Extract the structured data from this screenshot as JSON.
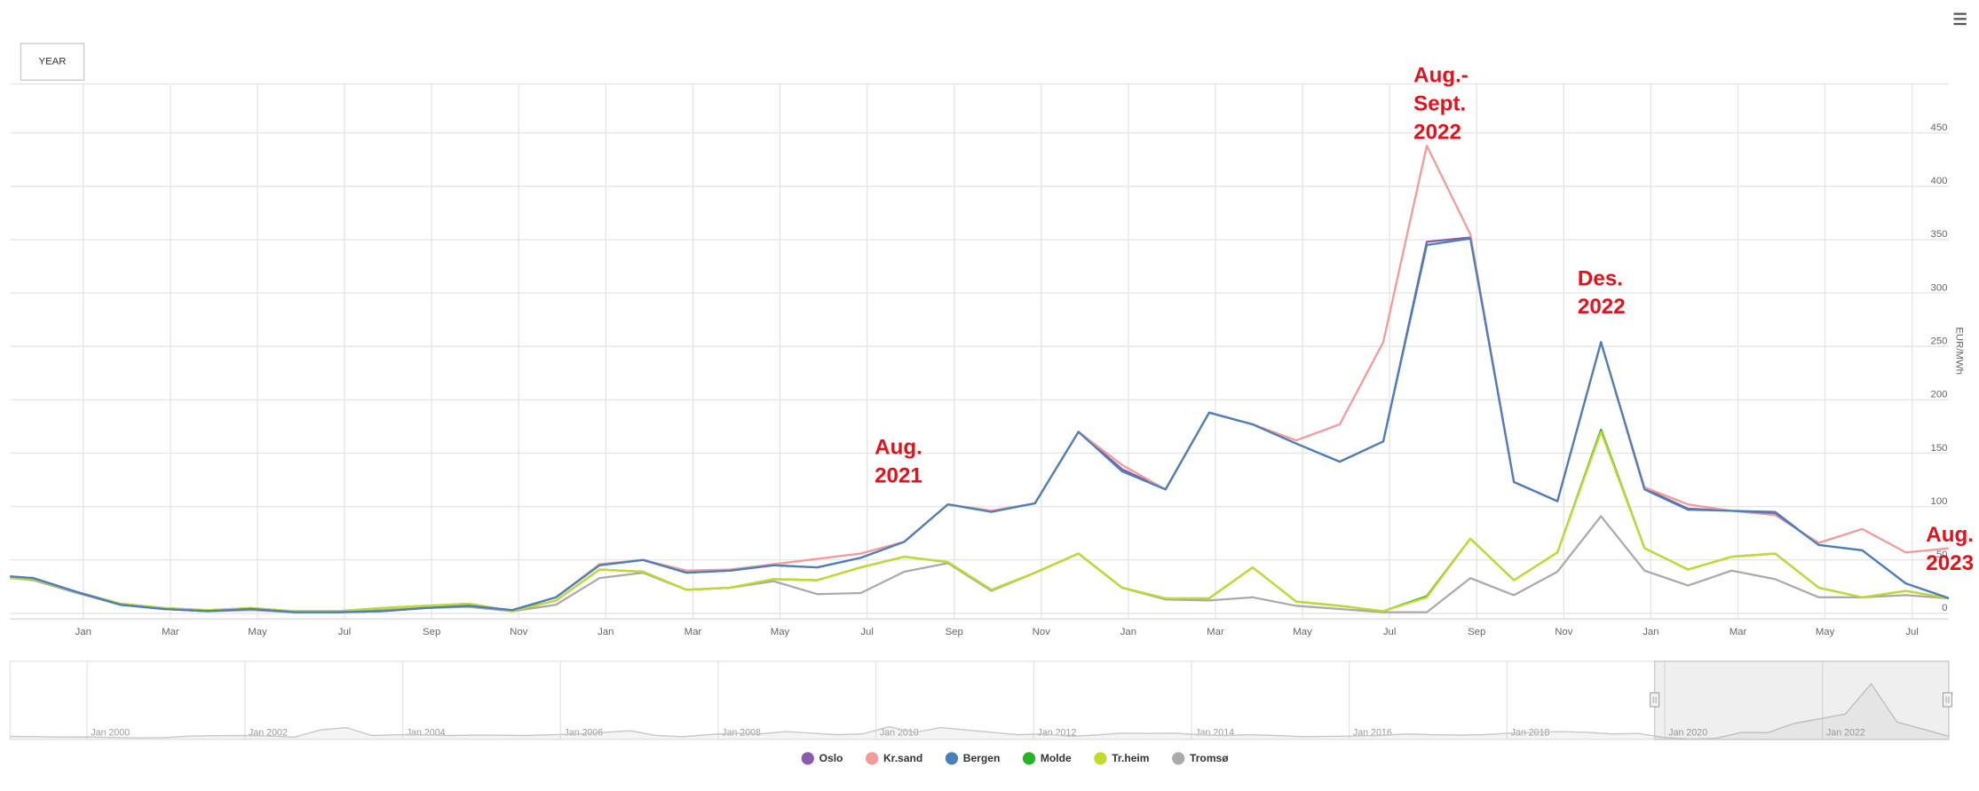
{
  "chart_data": {
    "type": "line",
    "button": "YEAR",
    "y_axis_label": "EUR/MWh",
    "categories": [
      null,
      null,
      "Jan",
      null,
      "Mar",
      null,
      "May",
      null,
      "Jul",
      null,
      "Sep",
      null,
      "Nov",
      null,
      "Jan",
      null,
      "Mar",
      null,
      "May",
      null,
      "Jul",
      null,
      "Sep",
      null,
      "Nov",
      null,
      "Jan",
      null,
      "Mar",
      null,
      "May",
      null,
      "Jul",
      null,
      "Sep",
      null,
      "Nov",
      null,
      "Jan",
      null,
      "Mar",
      null,
      "May",
      null,
      "Jul",
      null
    ],
    "series": [
      {
        "name": "Oslo",
        "color": "#8a5ba8",
        "values": [
          36,
          33,
          20,
          8,
          4,
          2,
          4,
          1,
          1,
          2,
          5,
          7,
          3,
          15,
          45,
          50,
          38,
          40,
          45,
          43,
          52,
          67,
          102,
          96,
          103,
          170,
          135,
          116,
          188,
          177,
          159,
          142,
          161,
          348,
          352,
          123,
          105,
          254,
          117,
          98,
          96,
          95,
          64,
          59,
          28,
          14
        ]
      },
      {
        "name": "Kr.sand",
        "color": "#f4999a",
        "values": [
          36,
          33,
          20,
          8,
          4,
          2,
          4,
          1,
          1,
          2,
          5,
          7,
          3,
          15,
          46,
          50,
          40,
          41,
          46,
          51,
          56,
          67,
          102,
          96,
          103,
          170,
          139,
          116,
          188,
          177,
          162,
          177,
          254,
          438,
          355,
          123,
          105,
          254,
          118,
          102,
          96,
          92,
          66,
          79,
          57,
          61
        ]
      },
      {
        "name": "Bergen",
        "color": "#4a80b8",
        "values": [
          36,
          33,
          20,
          8,
          4,
          2,
          4,
          1,
          1,
          2,
          5,
          7,
          3,
          15,
          45,
          50,
          38,
          40,
          45,
          43,
          52,
          67,
          102,
          95,
          103,
          170,
          133,
          116,
          188,
          177,
          159,
          142,
          161,
          345,
          351,
          123,
          105,
          254,
          116,
          97,
          96,
          94,
          64,
          59,
          28,
          14
        ]
      },
      {
        "name": "Molde",
        "color": "#27b327",
        "values": [
          34,
          32,
          20,
          9,
          5,
          3,
          5,
          2,
          2,
          5,
          7,
          9,
          2,
          12,
          41,
          39,
          22,
          24,
          32,
          31,
          43,
          53,
          48,
          22,
          38,
          56,
          24,
          14,
          14,
          43,
          11,
          7,
          2,
          16,
          70,
          31,
          57,
          172,
          61,
          41,
          53,
          56,
          24,
          15,
          21,
          14
        ]
      },
      {
        "name": "Tr.heim",
        "color": "#c3d92f",
        "values": [
          34,
          32,
          20,
          9,
          5,
          3,
          5,
          2,
          2,
          5,
          7,
          9,
          2,
          12,
          41,
          39,
          22,
          24,
          32,
          31,
          43,
          53,
          48,
          22,
          38,
          56,
          24,
          14,
          14,
          43,
          11,
          7,
          2,
          15,
          70,
          31,
          57,
          170,
          61,
          41,
          53,
          56,
          24,
          15,
          21,
          14
        ]
      },
      {
        "name": "Tromsø",
        "color": "#aaaaaa",
        "values": [
          35,
          31,
          19,
          8,
          4,
          2,
          3,
          1,
          1,
          3,
          5,
          6,
          2,
          8,
          33,
          38,
          22,
          24,
          30,
          18,
          19,
          39,
          47,
          21,
          38,
          56,
          24,
          13,
          12,
          15,
          7,
          4,
          1,
          1,
          33,
          17,
          39,
          91,
          40,
          26,
          40,
          32,
          15,
          15,
          17,
          14
        ]
      }
    ],
    "ylim": [
      0,
      500
    ],
    "yticks": [
      0,
      50,
      100,
      150,
      200,
      250,
      300,
      350,
      400,
      450
    ],
    "grid": true,
    "annotations": [
      [
        "Aug.",
        "2021"
      ],
      [
        "Aug.-",
        "Sept.",
        "2022"
      ],
      [
        "Des.",
        "2022"
      ],
      [
        "Aug.",
        "2023"
      ]
    ],
    "navigator": {
      "labels": [
        "Jan 2000",
        "Jan 2002",
        "Jan 2004",
        "Jan 2006",
        "Jan 2008",
        "Jan 2010",
        "Jan 2012",
        "Jan 2014",
        "Jan 2016",
        "Jan 2018",
        "Jan 2020",
        "Jan 2022"
      ],
      "ylim": [
        0,
        460
      ],
      "values": [
        20,
        18,
        15,
        16,
        13,
        10,
        12,
        22,
        24,
        25,
        22,
        15,
        60,
        75,
        25,
        30,
        30,
        25,
        28,
        27,
        25,
        30,
        35,
        45,
        55,
        25,
        18,
        30,
        40,
        35,
        50,
        40,
        30,
        35,
        80,
        45,
        75,
        60,
        45,
        30,
        35,
        20,
        28,
        40,
        38,
        40,
        30,
        25,
        30,
        25,
        18,
        20,
        22,
        25,
        35,
        30,
        28,
        30,
        40,
        45,
        50,
        45,
        35,
        38,
        12,
        3,
        8,
        45,
        43,
        100,
        130,
        160,
        350,
        110,
        65,
        20
      ]
    }
  }
}
